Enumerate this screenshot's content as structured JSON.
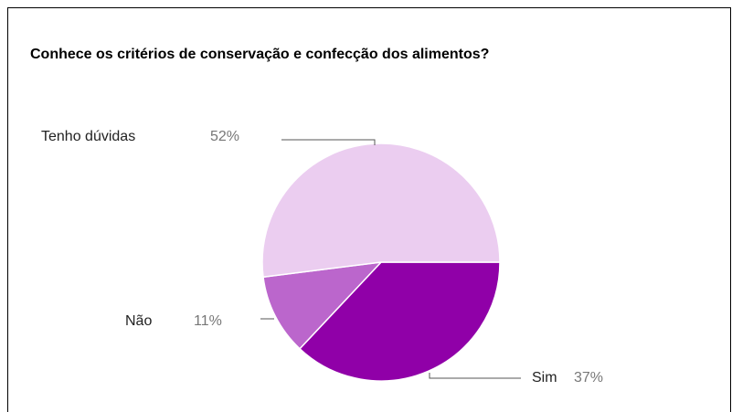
{
  "chart_data": {
    "type": "pie",
    "title": "Conhece os critérios de conservação e confecção dos alimentos?",
    "categories": [
      "Sim",
      "Não",
      "Tenho dúvidas"
    ],
    "values": [
      37,
      11,
      52
    ],
    "value_labels": [
      "37%",
      "11%",
      "52%"
    ],
    "colors": [
      "#9000a8",
      "#bb66cc",
      "#ebcdf0"
    ]
  }
}
